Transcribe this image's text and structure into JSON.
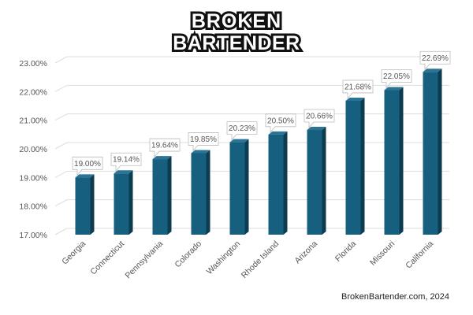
{
  "brand": {
    "line1": "BROKEN",
    "line2": "BARTENDER"
  },
  "source": "BrokenBartender.com, 2024",
  "colors": {
    "bar_front": "#175f7e",
    "bar_side": "#0d3c50",
    "bar_top": "#2a7496",
    "grid": "#dddddd"
  },
  "chart_data": {
    "type": "bar",
    "title": "",
    "xlabel": "",
    "ylabel": "",
    "categories": [
      "Georgia",
      "Connecticut",
      "Pennsylvania",
      "Colorado",
      "Washington",
      "Rhode Island",
      "Arizona",
      "Florida",
      "Missouri",
      "California"
    ],
    "values": [
      19.0,
      19.14,
      19.64,
      19.85,
      20.23,
      20.5,
      20.66,
      21.68,
      22.05,
      22.69
    ],
    "value_labels": [
      "19.00%",
      "19.14%",
      "19.64%",
      "19.85%",
      "20.23%",
      "20.50%",
      "20.66%",
      "21.68%",
      "22.05%",
      "22.69%"
    ],
    "ylim": [
      17,
      23
    ],
    "yticks": [
      17,
      18,
      19,
      20,
      21,
      22,
      23
    ],
    "ytick_labels": [
      "17.00%",
      "18.00%",
      "19.00%",
      "20.00%",
      "21.00%",
      "22.00%",
      "23.00%"
    ],
    "grid": true,
    "legend": "none"
  }
}
